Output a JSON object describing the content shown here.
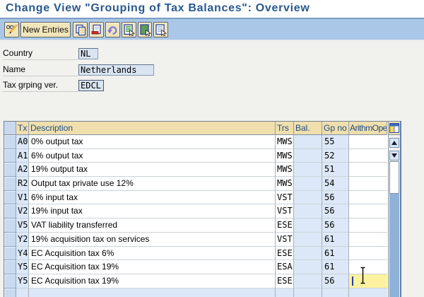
{
  "title": "Change View \"Grouping of Tax Balances\": Overview",
  "toolbar": {
    "buttons": [
      {
        "icon": "pencil-glasses-icon",
        "label": ""
      },
      {
        "icon": "",
        "label": "New Entries"
      },
      {
        "icon": "copy-icon",
        "label": ""
      },
      {
        "icon": "delete-row-icon",
        "label": ""
      },
      {
        "icon": "undo-icon",
        "label": ""
      },
      {
        "icon": "select-all-icon",
        "label": ""
      },
      {
        "icon": "select-block-icon",
        "label": ""
      },
      {
        "icon": "deselect-all-icon",
        "label": ""
      }
    ]
  },
  "form": {
    "fields": [
      {
        "label": "Country",
        "value": "NL"
      },
      {
        "label": "Name",
        "value": "Netherlands"
      },
      {
        "label": "Tax grping ver.",
        "value": "EDCL"
      }
    ]
  },
  "table": {
    "columns": {
      "tx": "Tx",
      "description": "Description",
      "trs": "Trs",
      "bal": "Bal.",
      "gp_no": "Gp no",
      "arithm_ope": "ArithmOpe"
    },
    "rows": [
      {
        "tx": "A0",
        "description": "0% output tax",
        "trs": "MWS",
        "bal": "",
        "gp_no": "55",
        "arithm_ope": ""
      },
      {
        "tx": "A1",
        "description": "6% output tax",
        "trs": "MWS",
        "bal": "",
        "gp_no": "52",
        "arithm_ope": ""
      },
      {
        "tx": "A2",
        "description": "19% output tax",
        "trs": "MWS",
        "bal": "",
        "gp_no": "51",
        "arithm_ope": ""
      },
      {
        "tx": "R2",
        "description": "Output tax private use 12%",
        "trs": "MWS",
        "bal": "",
        "gp_no": "54",
        "arithm_ope": ""
      },
      {
        "tx": "V1",
        "description": "6% input tax",
        "trs": "VST",
        "bal": "",
        "gp_no": "56",
        "arithm_ope": ""
      },
      {
        "tx": "V2",
        "description": "19% input tax",
        "trs": "VST",
        "bal": "",
        "gp_no": "56",
        "arithm_ope": ""
      },
      {
        "tx": "V5",
        "description": "VAT liability transferred",
        "trs": "ESE",
        "bal": "",
        "gp_no": "56",
        "arithm_ope": ""
      },
      {
        "tx": "Y2",
        "description": "19% acquisition tax on services",
        "trs": "VST",
        "bal": "",
        "gp_no": "61",
        "arithm_ope": ""
      },
      {
        "tx": "Y4",
        "description": "EC Acquisition tax 6%",
        "trs": "ESE",
        "bal": "",
        "gp_no": "61",
        "arithm_ope": ""
      },
      {
        "tx": "Y5",
        "description": "EC Acquisition tax 19%",
        "trs": "ESA",
        "bal": "",
        "gp_no": "61",
        "arithm_ope": ""
      },
      {
        "tx": "Y5",
        "description": "EC Acquisition tax 19%",
        "trs": "ESE",
        "bal": "",
        "gp_no": "56",
        "arithm_ope": ""
      }
    ]
  }
}
